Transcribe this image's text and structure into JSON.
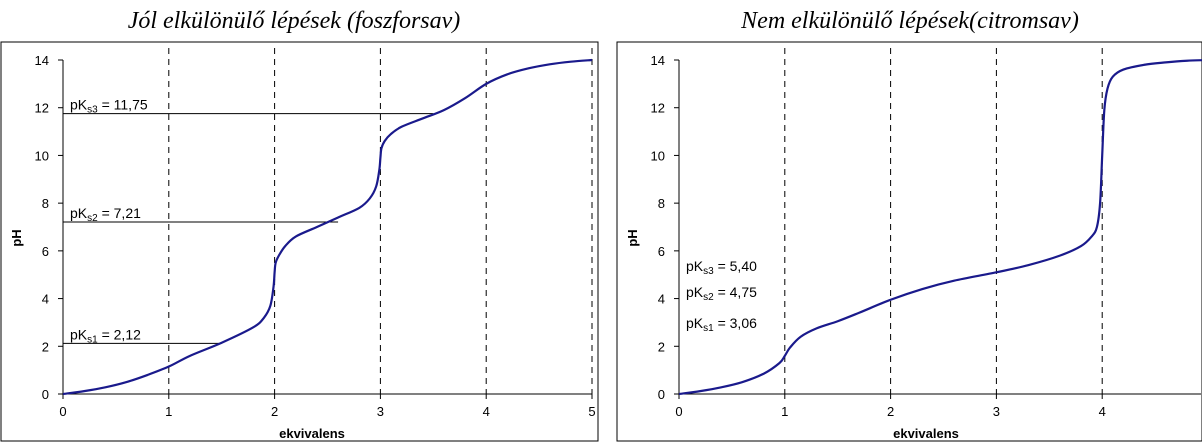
{
  "chart_data": [
    {
      "type": "line",
      "title": "Jól elkülönülő lépések (foszforsav)",
      "xlabel": "ekvivalens",
      "ylabel": "pH",
      "xlim": [
        0,
        5
      ],
      "ylim": [
        0,
        14
      ],
      "x_ticks": [
        "0",
        "1",
        "2",
        "3",
        "4",
        "5"
      ],
      "y_ticks": [
        "0",
        "2",
        "4",
        "6",
        "8",
        "10",
        "12",
        "14"
      ],
      "grid": "vertical dashed at each integer equivalent",
      "legend": "none",
      "line_color": "#1a1a8c",
      "series": [
        {
          "x": [
            0,
            0.2,
            0.4,
            0.6,
            0.8,
            1.0,
            1.2,
            1.5,
            1.8,
            1.9,
            1.96,
            1.99,
            2.0,
            2.01,
            2.04,
            2.1,
            2.2,
            2.4,
            2.6,
            2.8,
            2.9,
            2.96,
            2.99,
            3.0,
            3.01,
            3.04,
            3.1,
            3.2,
            3.4,
            3.6,
            3.8,
            4.0,
            4.2,
            4.4,
            4.6,
            4.8,
            5.0
          ],
          "y": [
            0.0,
            0.12,
            0.28,
            0.5,
            0.8,
            1.15,
            1.6,
            2.15,
            2.8,
            3.2,
            3.7,
            4.5,
            5.1,
            5.5,
            5.8,
            6.2,
            6.6,
            7.0,
            7.4,
            7.8,
            8.2,
            8.7,
            9.4,
            9.9,
            10.3,
            10.6,
            10.9,
            11.2,
            11.55,
            11.9,
            12.4,
            13.0,
            13.4,
            13.65,
            13.82,
            13.93,
            14.0
          ]
        }
      ],
      "annotations": [
        {
          "base": "pK",
          "sub": "s1",
          "rest": " = 2,12",
          "value": 2.12,
          "line_to_x": 1.5
        },
        {
          "base": "pK",
          "sub": "s2",
          "rest": " = 7,21",
          "value": 7.21,
          "line_to_x": 2.6
        },
        {
          "base": "pK",
          "sub": "s3",
          "rest": " = 11,75",
          "value": 11.75,
          "line_to_x": 3.5
        }
      ]
    },
    {
      "type": "line",
      "title": "Nem elkülönülő lépések(citromsav)",
      "xlabel": "ekvivalens",
      "ylabel": "pH",
      "xlim": [
        0,
        5
      ],
      "ylim": [
        0,
        14
      ],
      "x_ticks": [
        "0",
        "1",
        "2",
        "3",
        "4",
        ""
      ],
      "y_ticks": [
        "0",
        "2",
        "4",
        "6",
        "8",
        "10",
        "12",
        "14"
      ],
      "grid": "vertical dashed at each integer equivalent",
      "legend": "none",
      "line_color": "#1a1a8c",
      "series": [
        {
          "x": [
            0,
            0.2,
            0.4,
            0.6,
            0.8,
            0.95,
            1.0,
            1.05,
            1.15,
            1.3,
            1.5,
            1.7,
            2.0,
            2.3,
            2.6,
            3.0,
            3.3,
            3.6,
            3.8,
            3.9,
            3.95,
            3.98,
            4.0,
            4.02,
            4.05,
            4.1,
            4.2,
            4.4,
            4.6,
            4.8,
            5.0
          ],
          "y": [
            0.0,
            0.12,
            0.28,
            0.5,
            0.85,
            1.3,
            1.6,
            1.95,
            2.4,
            2.75,
            3.05,
            3.4,
            3.95,
            4.4,
            4.75,
            5.1,
            5.4,
            5.8,
            6.2,
            6.6,
            7.0,
            8.0,
            10.0,
            11.9,
            12.8,
            13.3,
            13.6,
            13.8,
            13.9,
            13.97,
            14.0
          ]
        }
      ],
      "annotations": [
        {
          "base": "pK",
          "sub": "s3",
          "rest": " = 5,40",
          "value": 5.4
        },
        {
          "base": "pK",
          "sub": "s2",
          "rest": " = 4,75",
          "value": 4.75
        },
        {
          "base": "pK",
          "sub": "s1",
          "rest": " = 3,06",
          "value": 3.06
        }
      ]
    }
  ]
}
